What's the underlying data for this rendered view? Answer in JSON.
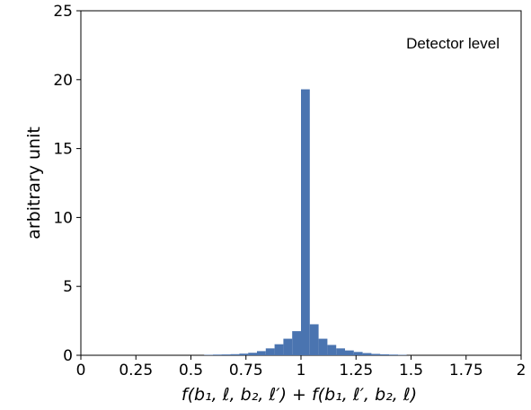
{
  "chart_data": {
    "type": "bar",
    "title": "",
    "xlabel": "f(b₁, ℓ, b₂, ℓ′) + f(b₁, ℓ′, b₂, ℓ)",
    "ylabel": "arbitrary unit",
    "annotation": "Detector level",
    "xlim": [
      0,
      2
    ],
    "ylim": [
      0,
      25
    ],
    "xticks": [
      0,
      0.25,
      0.5,
      0.75,
      1,
      1.25,
      1.5,
      1.75,
      2
    ],
    "xtick_labels": [
      "0",
      "0.25",
      "0.5",
      "0.75",
      "1",
      "1.25",
      "1.5",
      "1.75",
      "2"
    ],
    "yticks": [
      0,
      5,
      10,
      15,
      20,
      25
    ],
    "ytick_labels": [
      "0",
      "5",
      "10",
      "15",
      "20",
      "25"
    ],
    "grid": false,
    "bar_color": "#4a74b0",
    "bin_width": 0.04,
    "bins_left_edge": [
      0.56,
      0.6,
      0.64,
      0.68,
      0.72,
      0.76,
      0.8,
      0.84,
      0.88,
      0.92,
      0.96,
      1.0,
      1.04,
      1.08,
      1.12,
      1.16,
      1.2,
      1.24,
      1.28,
      1.32,
      1.36,
      1.4,
      1.44
    ],
    "values": [
      0.03,
      0.05,
      0.06,
      0.08,
      0.12,
      0.18,
      0.3,
      0.5,
      0.8,
      1.2,
      1.75,
      19.3,
      2.25,
      1.2,
      0.75,
      0.5,
      0.35,
      0.24,
      0.16,
      0.1,
      0.07,
      0.05,
      0.03
    ]
  }
}
